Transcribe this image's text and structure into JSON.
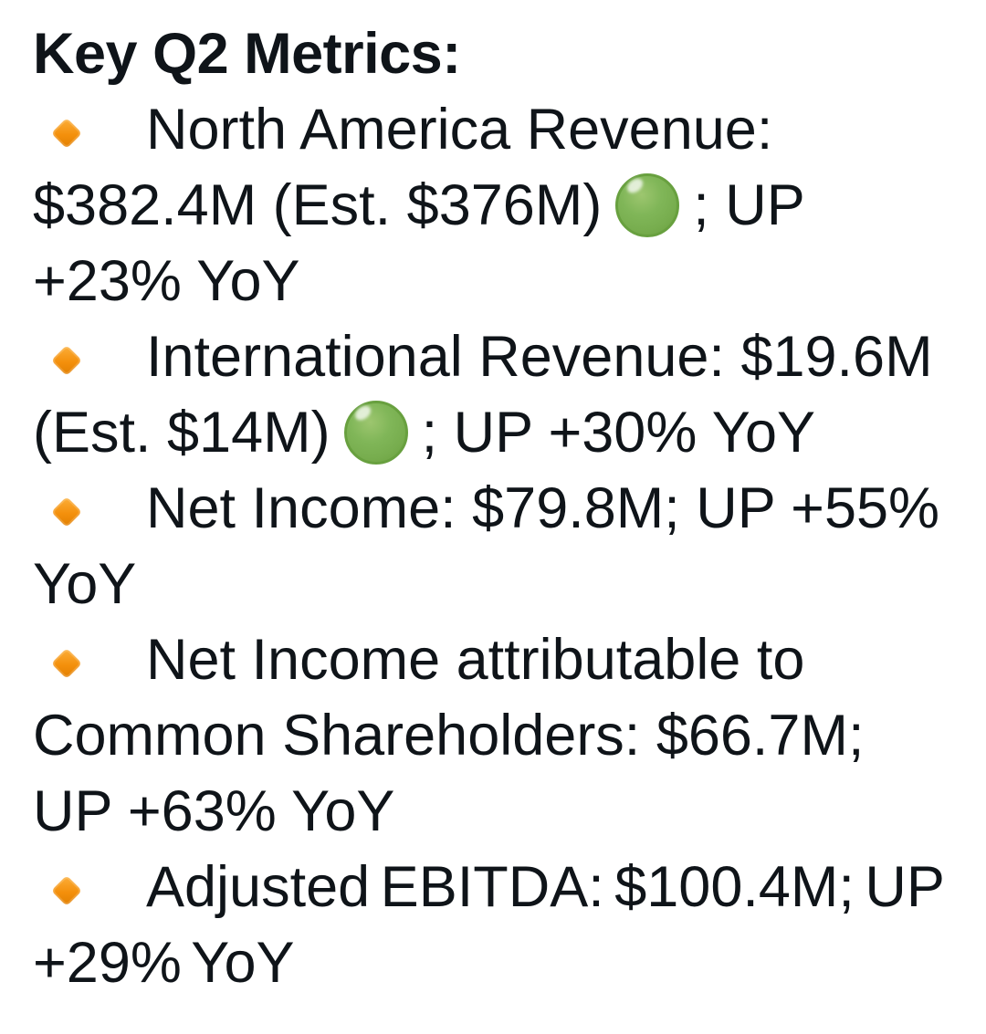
{
  "heading": "Key Q2 Metrics:",
  "bullet_icon": "small-orange-diamond",
  "indicator_icon": "green-circle",
  "colors": {
    "text": "#0f1419",
    "background": "#ffffff",
    "bullet_orange": "#f4900c",
    "indicator_green": "#77b255"
  },
  "metrics": [
    {
      "pre": "North America Revenue: $382.4M (Est. $376M)",
      "indicator": "green-circle",
      "post": "; UP +23% YoY"
    },
    {
      "pre": "International Revenue: $19.6M (Est. $14M)",
      "indicator": "green-circle",
      "post": "; UP +30% YoY"
    },
    {
      "pre": "Net Income: $79.8M; UP +55% YoY",
      "indicator": null,
      "post": ""
    },
    {
      "pre": "Net Income attributable to Common Shareholders: $66.7M; UP +63% YoY",
      "indicator": null,
      "post": ""
    },
    {
      "pre": "Adjusted EBITDA: $100.4M; UP +29% YoY",
      "indicator": null,
      "post": ""
    }
  ]
}
